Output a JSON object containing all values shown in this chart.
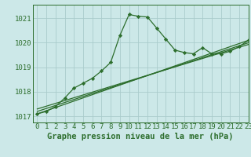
{
  "title": "Graphe pression niveau de la mer (hPa)",
  "bg_color": "#cce8e8",
  "grid_color": "#aacccc",
  "line_color": "#2d6e2d",
  "xlim": [
    -0.5,
    23
  ],
  "ylim": [
    1016.75,
    1021.55
  ],
  "yticks": [
    1017,
    1018,
    1019,
    1020,
    1021
  ],
  "xticks": [
    0,
    1,
    2,
    3,
    4,
    5,
    6,
    7,
    8,
    9,
    10,
    11,
    12,
    13,
    14,
    15,
    16,
    17,
    18,
    19,
    20,
    21,
    22,
    23
  ],
  "main_x": [
    0,
    1,
    2,
    3,
    4,
    5,
    6,
    7,
    8,
    9,
    10,
    11,
    12,
    13,
    14,
    15,
    16,
    17,
    18,
    19,
    20,
    21,
    22,
    23
  ],
  "main_y": [
    1017.1,
    1017.2,
    1017.4,
    1017.75,
    1018.15,
    1018.35,
    1018.55,
    1018.85,
    1019.2,
    1020.3,
    1021.15,
    1021.08,
    1021.05,
    1020.6,
    1020.15,
    1019.7,
    1019.6,
    1019.55,
    1019.8,
    1019.55,
    1019.55,
    1019.65,
    1019.85,
    1020.1
  ],
  "line2_x": [
    0,
    23
  ],
  "line2_y": [
    1017.1,
    1020.1
  ],
  "line3_x": [
    0,
    23
  ],
  "line3_y": [
    1017.2,
    1020.0
  ],
  "line4_x": [
    0,
    23
  ],
  "line4_y": [
    1017.3,
    1019.93
  ],
  "xlabel_fontsize": 7.5,
  "tick_fontsize": 6.5
}
